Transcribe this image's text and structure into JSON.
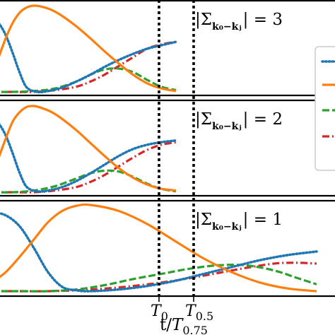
{
  "chart_data": {
    "type": "line",
    "xlabel_main": "t/T",
    "xlabel_sub": "0.75",
    "vlines": [
      {
        "label": "T",
        "sub": "0"
      },
      {
        "label": "T",
        "sub": "0.5"
      }
    ],
    "colors": {
      "blue": "#1f77b4",
      "orange": "#ff7f0e",
      "green": "#2ca02c",
      "red": "#d62728"
    },
    "legend_placement": "right (clipped)",
    "panels": [
      {
        "annotation": {
          "prefix": "|",
          "sum": "Σ",
          "sub": "k₀−kⱼ",
          "suffix": "| = 3"
        },
        "x_end": 2.61,
        "series": [
          {
            "color": "blue",
            "style": "dotted",
            "x": [
              0.0,
              0.1,
              0.2,
              0.3,
              0.4,
              0.5,
              0.65,
              0.8,
              1.0,
              1.2,
              1.4,
              1.6,
              1.8,
              2.0,
              2.2,
              2.4,
              2.61
            ],
            "y": [
              0.88,
              0.8,
              0.66,
              0.45,
              0.22,
              0.05,
              0.0,
              0.01,
              0.05,
              0.12,
              0.2,
              0.29,
              0.37,
              0.44,
              0.5,
              0.54,
              0.58
            ]
          },
          {
            "color": "orange",
            "style": "solid",
            "x": [
              0.0,
              0.1,
              0.2,
              0.3,
              0.4,
              0.5,
              0.6,
              0.7,
              0.85,
              1.0,
              1.2,
              1.4,
              1.6,
              1.8,
              2.0,
              2.2,
              2.4,
              2.61
            ],
            "y": [
              0.2,
              0.4,
              0.62,
              0.8,
              0.92,
              0.98,
              1.0,
              0.99,
              0.95,
              0.88,
              0.76,
              0.62,
              0.47,
              0.33,
              0.2,
              0.1,
              0.04,
              0.01
            ]
          },
          {
            "color": "green",
            "style": "dashed",
            "x": [
              0.0,
              0.3,
              0.6,
              0.9,
              1.2,
              1.4,
              1.6,
              1.8,
              2.0,
              2.2,
              2.4,
              2.61
            ],
            "y": [
              0.0,
              0.0,
              0.01,
              0.04,
              0.12,
              0.2,
              0.26,
              0.27,
              0.23,
              0.14,
              0.06,
              0.02
            ]
          },
          {
            "color": "red",
            "style": "dashdot",
            "x": [
              0.0,
              0.3,
              0.6,
              0.9,
              1.2,
              1.4,
              1.6,
              1.8,
              2.0,
              2.2,
              2.4,
              2.61
            ],
            "y": [
              0.0,
              0.0,
              0.0,
              0.02,
              0.06,
              0.12,
              0.2,
              0.3,
              0.4,
              0.5,
              0.55,
              0.58
            ]
          }
        ]
      },
      {
        "annotation": {
          "prefix": "|",
          "sum": "Σ",
          "sub": "k₀−kⱼ",
          "suffix": "| = 2"
        },
        "x_end": 2.61,
        "series": [
          {
            "color": "blue",
            "style": "dotted",
            "x": [
              0.0,
              0.1,
              0.2,
              0.3,
              0.4,
              0.5,
              0.65,
              0.8,
              1.0,
              1.2,
              1.4,
              1.6,
              1.8,
              2.0,
              2.2,
              2.4,
              2.61
            ],
            "y": [
              0.88,
              0.8,
              0.66,
              0.45,
              0.22,
              0.06,
              0.01,
              0.02,
              0.06,
              0.13,
              0.22,
              0.32,
              0.42,
              0.5,
              0.55,
              0.58,
              0.6
            ]
          },
          {
            "color": "orange",
            "style": "solid",
            "x": [
              0.0,
              0.1,
              0.2,
              0.3,
              0.4,
              0.5,
              0.6,
              0.7,
              0.85,
              1.0,
              1.2,
              1.4,
              1.6,
              1.8,
              2.0,
              2.2,
              2.4,
              2.61
            ],
            "y": [
              0.2,
              0.4,
              0.62,
              0.82,
              0.93,
              0.99,
              1.0,
              0.98,
              0.93,
              0.85,
              0.72,
              0.57,
              0.42,
              0.28,
              0.17,
              0.09,
              0.04,
              0.02
            ]
          },
          {
            "color": "green",
            "style": "dashed",
            "x": [
              0.0,
              0.3,
              0.6,
              0.9,
              1.2,
              1.4,
              1.6,
              1.8,
              2.0,
              2.2,
              2.4,
              2.61
            ],
            "y": [
              0.0,
              0.0,
              0.02,
              0.07,
              0.16,
              0.22,
              0.25,
              0.24,
              0.18,
              0.1,
              0.04,
              0.01
            ]
          },
          {
            "color": "red",
            "style": "dashdot",
            "x": [
              0.0,
              0.3,
              0.6,
              0.9,
              1.2,
              1.4,
              1.6,
              1.8,
              2.0,
              2.2,
              2.4,
              2.61
            ],
            "y": [
              0.0,
              0.0,
              0.0,
              0.02,
              0.06,
              0.12,
              0.2,
              0.3,
              0.4,
              0.49,
              0.55,
              0.58
            ]
          }
        ]
      },
      {
        "annotation": {
          "prefix": "|",
          "sum": "Σ",
          "sub": "k₀−kⱼ",
          "suffix": "| = 1"
        },
        "x_end": 4.6,
        "series": [
          {
            "color": "blue",
            "style": "dotted",
            "x": [
              0.0,
              0.2,
              0.4,
              0.6,
              0.8,
              1.0,
              1.2,
              1.4,
              1.8,
              2.2,
              2.6,
              3.0,
              3.4,
              3.8,
              4.2,
              4.6
            ],
            "y": [
              0.92,
              0.88,
              0.75,
              0.5,
              0.22,
              0.05,
              0.01,
              0.0,
              0.02,
              0.06,
              0.12,
              0.2,
              0.28,
              0.36,
              0.42,
              0.46
            ]
          },
          {
            "color": "orange",
            "style": "solid",
            "x": [
              0.0,
              0.2,
              0.4,
              0.6,
              0.8,
              1.0,
              1.2,
              1.4,
              1.8,
              2.2,
              2.6,
              3.0,
              3.4,
              3.8,
              4.2,
              4.6
            ],
            "y": [
              0.1,
              0.22,
              0.4,
              0.6,
              0.8,
              0.93,
              0.99,
              1.0,
              0.93,
              0.78,
              0.58,
              0.38,
              0.22,
              0.1,
              0.03,
              0.0
            ]
          },
          {
            "color": "green",
            "style": "dashed",
            "x": [
              0.0,
              0.4,
              0.8,
              1.2,
              1.6,
              2.0,
              2.4,
              2.8,
              3.2,
              3.6,
              4.0,
              4.3,
              4.6
            ],
            "y": [
              0.0,
              0.0,
              0.0,
              0.02,
              0.07,
              0.14,
              0.2,
              0.26,
              0.3,
              0.3,
              0.24,
              0.16,
              0.08
            ]
          },
          {
            "color": "red",
            "style": "dashdot",
            "x": [
              0.0,
              0.4,
              0.8,
              1.2,
              1.6,
              2.0,
              2.4,
              2.8,
              3.2,
              3.6,
              4.0,
              4.3,
              4.6
            ],
            "y": [
              0.0,
              0.0,
              0.0,
              0.01,
              0.03,
              0.06,
              0.1,
              0.15,
              0.21,
              0.27,
              0.32,
              0.33,
              0.32
            ]
          }
        ]
      }
    ]
  }
}
